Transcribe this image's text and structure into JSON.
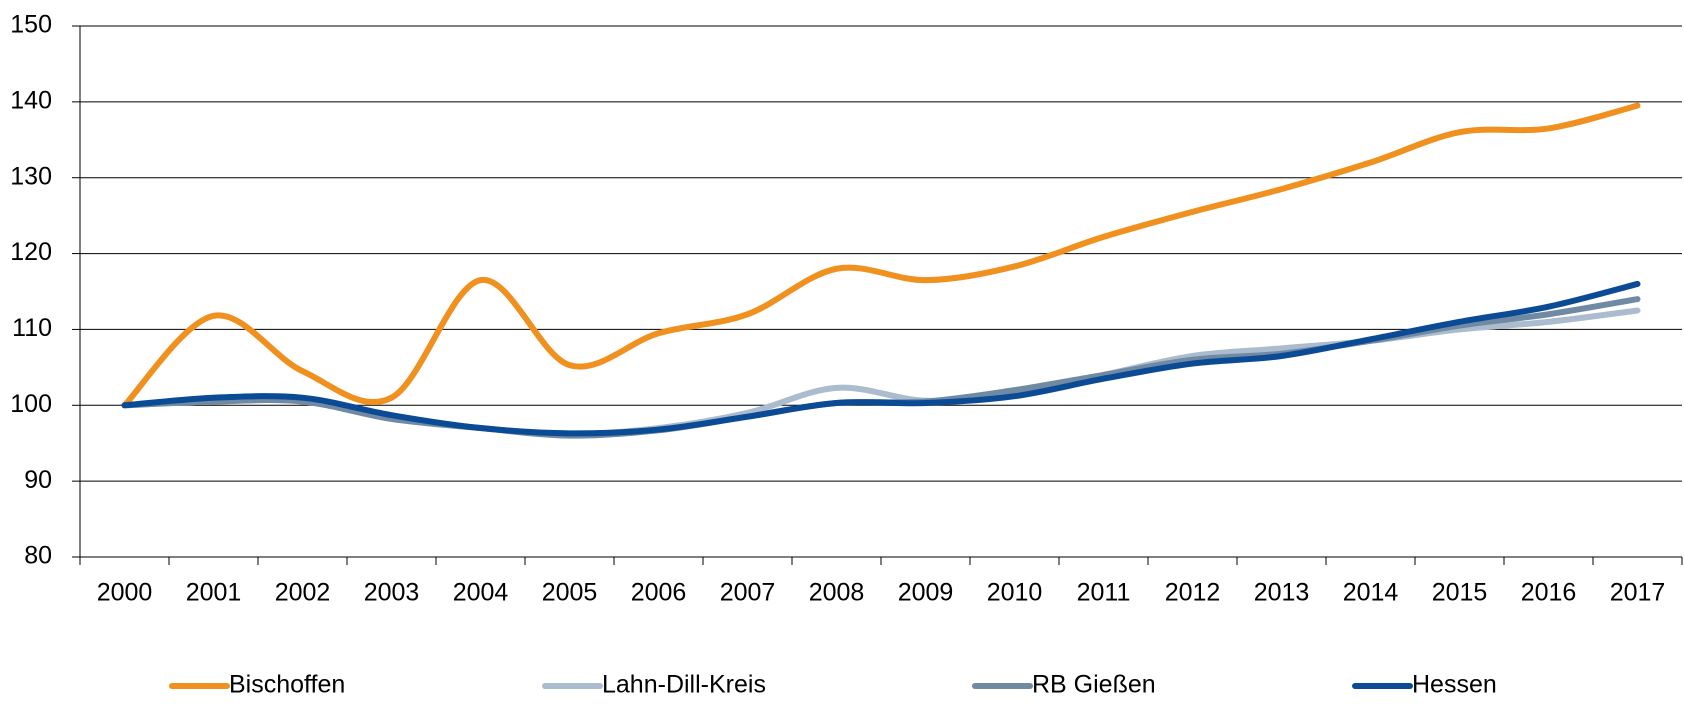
{
  "chart_data": {
    "type": "line",
    "categories": [
      "2000",
      "2001",
      "2002",
      "2003",
      "2004",
      "2005",
      "2006",
      "2007",
      "2008",
      "2009",
      "2010",
      "2011",
      "2012",
      "2013",
      "2014",
      "2015",
      "2016",
      "2017"
    ],
    "series": [
      {
        "name": "Bischoffen",
        "color": "#f0901e",
        "values": [
          100,
          111.8,
          104.5,
          101,
          116.5,
          105.3,
          109.5,
          112,
          118,
          116.5,
          118.3,
          122.2,
          125.5,
          128.5,
          132,
          136,
          136.5,
          139.5
        ]
      },
      {
        "name": "Lahn-Dill-Kreis",
        "color": "#aabccd",
        "values": [
          100,
          100.5,
          100.5,
          98.2,
          97,
          96.2,
          97,
          99,
          102.3,
          100.6,
          101.5,
          104,
          106.5,
          107.5,
          108.5,
          110,
          111,
          112.5
        ]
      },
      {
        "name": "RB Gießen",
        "color": "#6f8aa2",
        "values": [
          100,
          100.5,
          100.5,
          98.2,
          97,
          96,
          96.7,
          98.5,
          100.3,
          100.5,
          102,
          104,
          106,
          106.8,
          108.5,
          110.5,
          112,
          114
        ]
      },
      {
        "name": "Hessen",
        "color": "#0b4a94",
        "values": [
          100,
          101,
          101,
          98.7,
          97,
          96.3,
          96.8,
          98.5,
          100.3,
          100.3,
          101.2,
          103.5,
          105.5,
          106.5,
          108.7,
          111,
          113,
          116
        ]
      }
    ],
    "ylim": [
      80,
      150
    ],
    "yticks": [
      80,
      90,
      100,
      110,
      120,
      130,
      140,
      150
    ],
    "grid": true
  }
}
